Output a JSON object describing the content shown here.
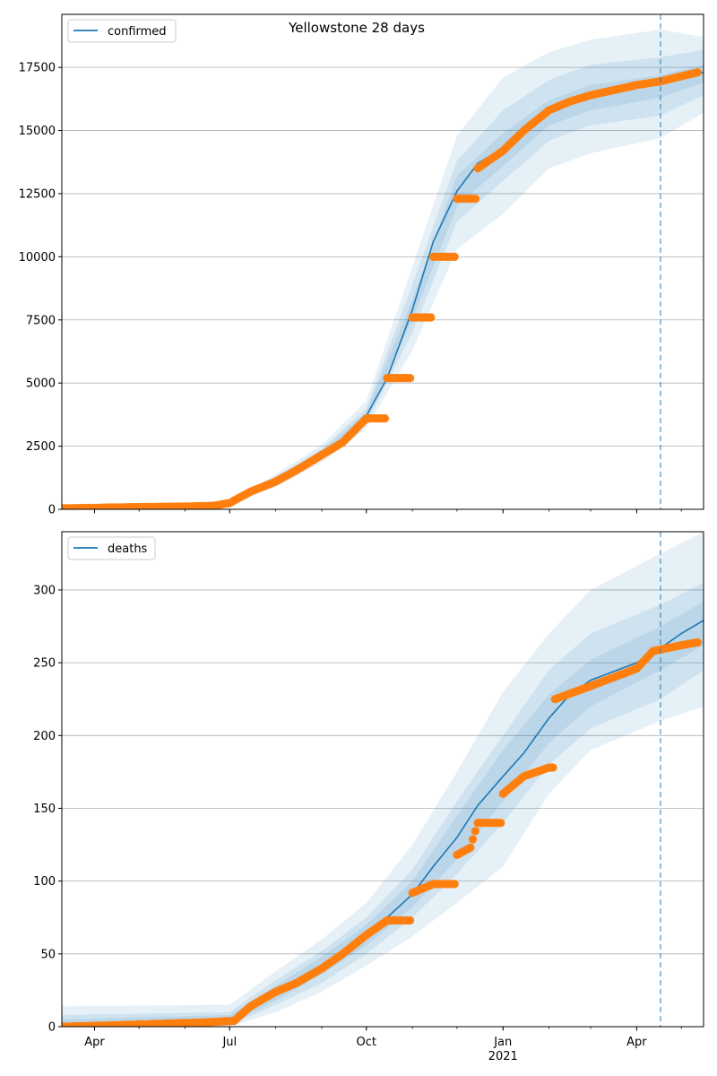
{
  "chart_data": [
    {
      "type": "line",
      "title": "Yellowstone 28 days",
      "legend": [
        "confirmed"
      ],
      "legend_position": "upper left",
      "grid": "horizontal",
      "x_type": "date",
      "xlim": [
        "2020-03-10",
        "2021-05-16"
      ],
      "ylim": [
        0,
        19600
      ],
      "yticks": [
        0,
        2500,
        5000,
        7500,
        10000,
        12500,
        15000,
        17500
      ],
      "xticks": [
        {
          "date": "2020-04-01",
          "label": "Apr"
        },
        {
          "date": "2020-07-01",
          "label": "Jul"
        },
        {
          "date": "2020-10-01",
          "label": "Oct"
        },
        {
          "date": "2021-01-01",
          "label": "Jan",
          "sublabel": "2021"
        },
        {
          "date": "2021-04-01",
          "label": "Apr"
        }
      ],
      "forecast_start": "2021-04-17",
      "series": [
        {
          "name": "confirmed",
          "role": "model",
          "color": "#1f77b4",
          "points": [
            [
              "2020-03-10",
              0
            ],
            [
              "2020-06-15",
              150
            ],
            [
              "2020-07-01",
              200
            ],
            [
              "2020-07-15",
              700
            ],
            [
              "2020-08-01",
              1150
            ],
            [
              "2020-08-15",
              1600
            ],
            [
              "2020-09-01",
              2200
            ],
            [
              "2020-09-15",
              2700
            ],
            [
              "2020-10-01",
              3700
            ],
            [
              "2020-10-15",
              5200
            ],
            [
              "2020-11-01",
              7900
            ],
            [
              "2020-11-15",
              10600
            ],
            [
              "2020-12-01",
              12600
            ],
            [
              "2020-12-15",
              13700
            ],
            [
              "2021-01-01",
              14300
            ],
            [
              "2021-01-15",
              15100
            ],
            [
              "2021-02-01",
              15700
            ],
            [
              "2021-02-15",
              16100
            ],
            [
              "2021-03-01",
              16400
            ],
            [
              "2021-04-01",
              16800
            ],
            [
              "2021-04-17",
              16950
            ],
            [
              "2021-05-01",
              17150
            ],
            [
              "2021-05-16",
              17300
            ]
          ]
        },
        {
          "name": "",
          "role": "observed",
          "color": "#ff7f0e",
          "points": [
            [
              "2020-03-10",
              40
            ],
            [
              "2020-04-01",
              60
            ],
            [
              "2020-05-01",
              90
            ],
            [
              "2020-06-01",
              110
            ],
            [
              "2020-06-20",
              140
            ],
            [
              "2020-07-01",
              250
            ],
            [
              "2020-07-15",
              700
            ],
            [
              "2020-08-01",
              1100
            ],
            [
              "2020-08-15",
              1550
            ],
            [
              "2020-09-01",
              2150
            ],
            [
              "2020-09-15",
              2650
            ],
            [
              "2020-10-01",
              3600
            ],
            [
              "2020-10-15",
              5200
            ],
            [
              "2020-11-01",
              7600
            ],
            [
              "2020-11-15",
              10000
            ],
            [
              "2020-12-01",
              12300
            ],
            [
              "2020-12-15",
              13500
            ],
            [
              "2021-01-01",
              14200
            ],
            [
              "2021-01-15",
              15000
            ],
            [
              "2021-02-01",
              15800
            ],
            [
              "2021-02-15",
              16150
            ],
            [
              "2021-03-01",
              16400
            ],
            [
              "2021-04-01",
              16800
            ],
            [
              "2021-04-17",
              16950
            ],
            [
              "2021-05-01",
              17150
            ],
            [
              "2021-05-12",
              17300
            ]
          ]
        }
      ],
      "bands": {
        "color": "#1f77b4",
        "x": [
          "2020-03-10",
          "2020-07-01",
          "2020-08-01",
          "2020-09-01",
          "2020-10-01",
          "2020-11-01",
          "2020-12-01",
          "2021-01-01",
          "2021-02-01",
          "2021-03-01",
          "2021-04-17",
          "2021-05-16"
        ],
        "levels": [
          {
            "lower": [
              0,
              150,
              900,
              1850,
              3200,
              6300,
              10300,
              11700,
              13500,
              14100,
              14700,
              15700
            ],
            "upper": [
              0,
              250,
              1400,
              2550,
              4300,
              9600,
              14800,
              17100,
              18100,
              18600,
              19000,
              18700
            ]
          },
          {
            "lower": [
              0,
              175,
              1000,
              2000,
              3400,
              7000,
              11400,
              13000,
              14600,
              15200,
              15600,
              16400
            ],
            "upper": [
              0,
              225,
              1300,
              2400,
              4000,
              8900,
              13800,
              15800,
              17000,
              17600,
              17900,
              18200
            ]
          },
          {
            "lower": [
              0,
              190,
              1080,
              2100,
              3550,
              7500,
              12000,
              13600,
              15200,
              15800,
              16300,
              16900
            ],
            "upper": [
              0,
              210,
              1220,
              2300,
              3850,
              8300,
              13200,
              14900,
              16200,
              16800,
              17200,
              17600
            ]
          }
        ]
      }
    },
    {
      "type": "line",
      "title": "",
      "legend": [
        "deaths"
      ],
      "legend_position": "upper left",
      "grid": "horizontal",
      "x_type": "date",
      "xlim": [
        "2020-03-10",
        "2021-05-16"
      ],
      "ylim": [
        0,
        340
      ],
      "yticks": [
        0,
        50,
        100,
        150,
        200,
        250,
        300
      ],
      "xticks": [
        {
          "date": "2020-04-01",
          "label": "Apr"
        },
        {
          "date": "2020-07-01",
          "label": "Jul"
        },
        {
          "date": "2020-10-01",
          "label": "Oct"
        },
        {
          "date": "2021-01-01",
          "label": "Jan",
          "sublabel": "2021"
        },
        {
          "date": "2021-04-01",
          "label": "Apr"
        }
      ],
      "forecast_start": "2021-04-17",
      "series": [
        {
          "name": "deaths",
          "role": "model",
          "color": "#1f77b4",
          "points": [
            [
              "2020-03-10",
              0
            ],
            [
              "2020-06-15",
              2
            ],
            [
              "2020-07-01",
              5
            ],
            [
              "2020-07-15",
              13
            ],
            [
              "2020-08-01",
              24
            ],
            [
              "2020-08-15",
              31
            ],
            [
              "2020-09-01",
              42
            ],
            [
              "2020-09-15",
              52
            ],
            [
              "2020-10-01",
              63
            ],
            [
              "2020-10-15",
              75
            ],
            [
              "2020-11-01",
              91
            ],
            [
              "2020-11-15",
              110
            ],
            [
              "2020-12-01",
              130
            ],
            [
              "2020-12-15",
              152
            ],
            [
              "2021-01-01",
              172
            ],
            [
              "2021-01-15",
              188
            ],
            [
              "2021-02-01",
              212
            ],
            [
              "2021-02-15",
              228
            ],
            [
              "2021-03-01",
              238
            ],
            [
              "2021-04-01",
              250
            ],
            [
              "2021-04-17",
              260
            ],
            [
              "2021-05-01",
              270
            ],
            [
              "2021-05-16",
              279
            ]
          ]
        },
        {
          "name": "",
          "role": "observed",
          "color": "#ff7f0e",
          "points": [
            [
              "2020-03-10",
              0
            ],
            [
              "2020-04-15",
              1
            ],
            [
              "2020-05-15",
              2
            ],
            [
              "2020-06-15",
              3
            ],
            [
              "2020-07-04",
              4
            ],
            [
              "2020-07-15",
              14
            ],
            [
              "2020-08-01",
              24
            ],
            [
              "2020-08-15",
              30
            ],
            [
              "2020-09-01",
              40
            ],
            [
              "2020-09-15",
              50
            ],
            [
              "2020-10-01",
              63
            ],
            [
              "2020-10-15",
              73
            ],
            [
              "2020-11-01",
              92
            ],
            [
              "2020-11-15",
              98
            ],
            [
              "2020-12-01",
              118
            ],
            [
              "2020-12-10",
              123
            ],
            [
              "2020-12-15",
              140
            ],
            [
              "2021-01-01",
              160
            ],
            [
              "2021-01-15",
              172
            ],
            [
              "2021-02-01",
              178
            ],
            [
              "2021-02-05",
              225
            ],
            [
              "2021-03-01",
              234
            ],
            [
              "2021-04-01",
              246
            ],
            [
              "2021-04-12",
              258
            ],
            [
              "2021-05-01",
              262
            ],
            [
              "2021-05-12",
              264
            ]
          ]
        }
      ],
      "bands": {
        "color": "#1f77b4",
        "x": [
          "2020-03-10",
          "2020-07-01",
          "2020-08-01",
          "2020-09-01",
          "2020-10-01",
          "2020-11-01",
          "2020-12-01",
          "2021-01-01",
          "2021-02-01",
          "2021-03-01",
          "2021-04-17",
          "2021-05-16"
        ],
        "levels": [
          {
            "lower": [
              0,
              0,
              10,
              24,
              42,
              62,
              85,
              110,
              160,
              190,
              210,
              220
            ],
            "upper": [
              14,
              15,
              38,
              60,
              85,
              125,
              175,
              230,
              270,
              300,
              325,
              340
            ]
          },
          {
            "lower": [
              0,
              1,
              15,
              30,
              50,
              75,
              105,
              140,
              180,
              205,
              225,
              245
            ],
            "upper": [
              8,
              10,
              32,
              52,
              75,
              108,
              155,
              200,
              245,
              270,
              290,
              305
            ]
          },
          {
            "lower": [
              0,
              2,
              18,
              36,
              56,
              82,
              115,
              155,
              195,
              220,
              245,
              262
            ],
            "upper": [
              5,
              8,
              28,
              48,
              70,
              100,
              145,
              190,
              228,
              252,
              275,
              292
            ]
          }
        ]
      }
    }
  ]
}
